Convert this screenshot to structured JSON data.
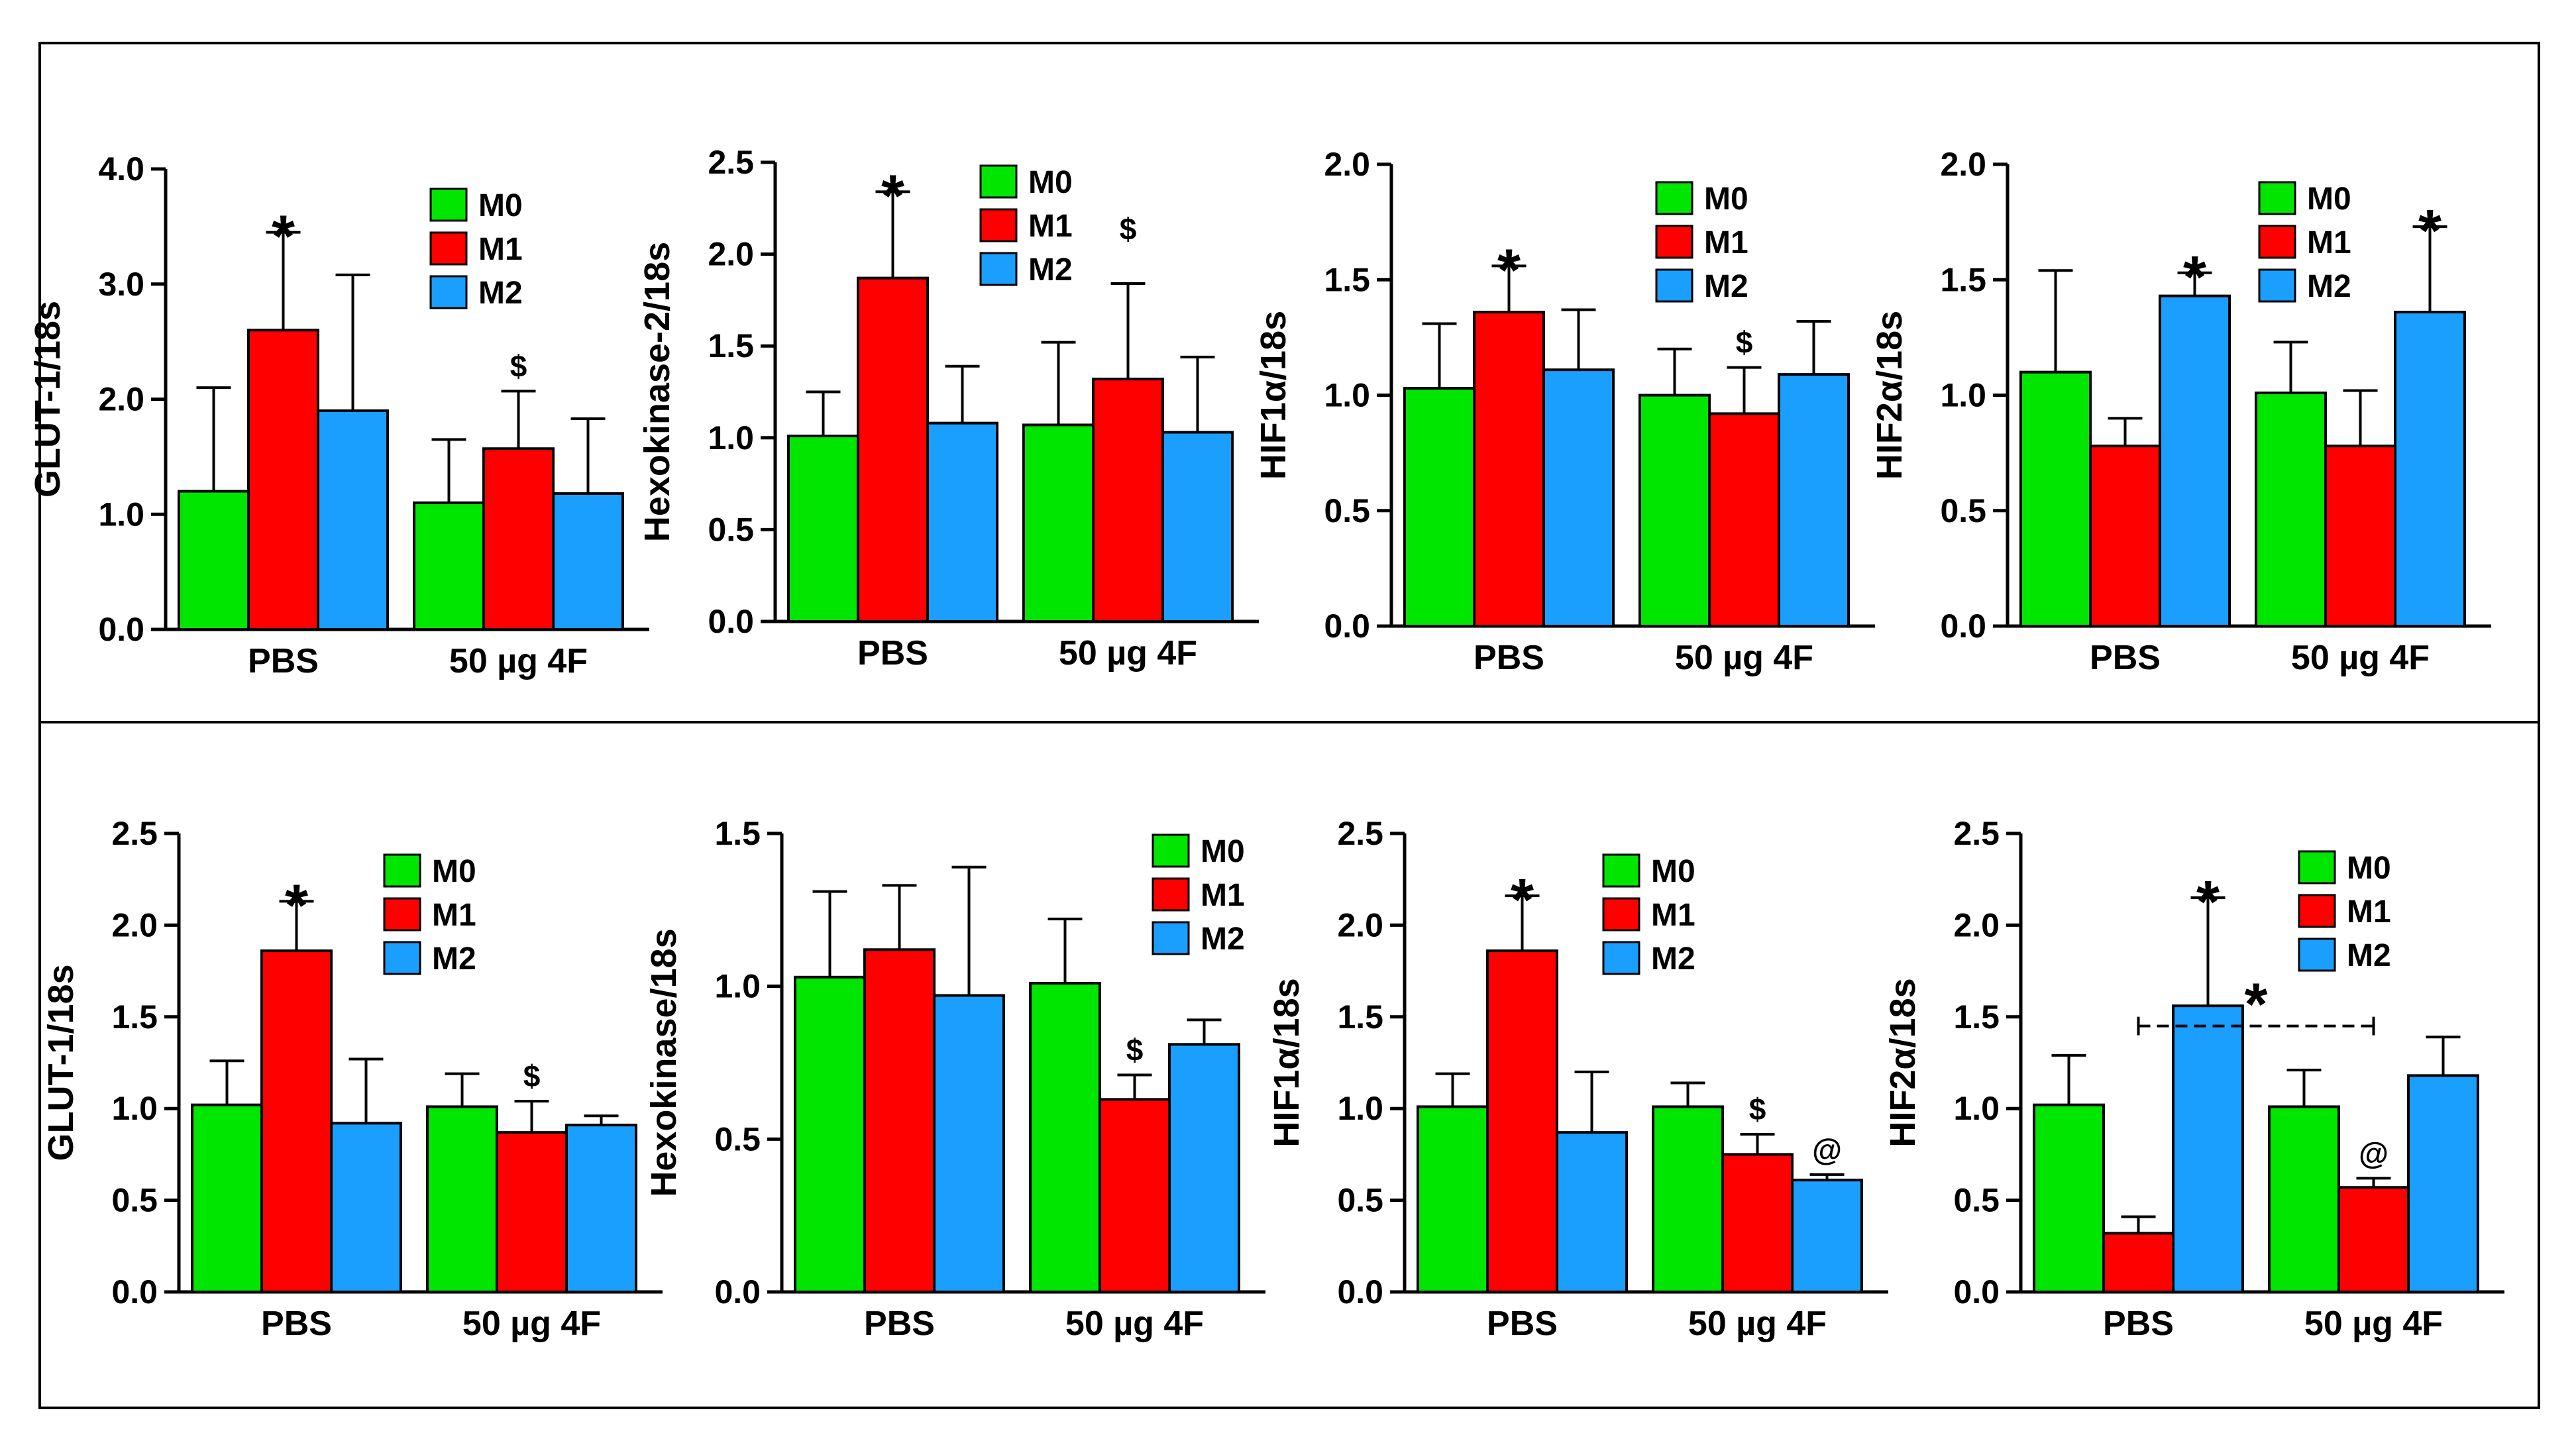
{
  "figure": {
    "background": "#ffffff",
    "border_color": "#000000"
  },
  "legend": {
    "labels": [
      "M0",
      "M1",
      "M2"
    ],
    "colors": [
      "#00e600",
      "#ff0000",
      "#1a9fff"
    ]
  },
  "chart_data": [
    {
      "type": "bar",
      "title": "",
      "ylabel": "GLUT-1/18s",
      "xlabel": "",
      "ylim": [
        0,
        4.0
      ],
      "yticks": [
        0.0,
        1.0,
        2.0,
        3.0,
        4.0
      ],
      "tick_decimals": 1,
      "categories": [
        "PBS",
        "50 µg 4F"
      ],
      "series": [
        {
          "name": "M0",
          "values": [
            1.2,
            1.1
          ],
          "errors": [
            0.9,
            0.55
          ]
        },
        {
          "name": "M1",
          "values": [
            2.6,
            1.57
          ],
          "errors": [
            0.85,
            0.5
          ]
        },
        {
          "name": "M2",
          "values": [
            1.9,
            1.18
          ],
          "errors": [
            1.18,
            0.65
          ]
        }
      ],
      "annotations": [
        {
          "text": "*",
          "kind": "star",
          "category": 0,
          "series": 1
        },
        {
          "text": "$",
          "kind": "sym",
          "category": 1,
          "series": 1
        }
      ]
    },
    {
      "type": "bar",
      "title": "",
      "ylabel": "Hexokinase-2/18s",
      "xlabel": "",
      "ylim": [
        0,
        2.5
      ],
      "yticks": [
        0.0,
        0.5,
        1.0,
        1.5,
        2.0,
        2.5
      ],
      "tick_decimals": 1,
      "categories": [
        "PBS",
        "50 µg 4F"
      ],
      "series": [
        {
          "name": "M0",
          "values": [
            1.01,
            1.07
          ],
          "errors": [
            0.24,
            0.45
          ]
        },
        {
          "name": "M1",
          "values": [
            1.87,
            1.32
          ],
          "errors": [
            0.47,
            0.52
          ]
        },
        {
          "name": "M2",
          "values": [
            1.08,
            1.03
          ],
          "errors": [
            0.31,
            0.41
          ]
        }
      ],
      "annotations": [
        {
          "text": "*",
          "kind": "star",
          "category": 0,
          "series": 1
        },
        {
          "text": "$",
          "kind": "sym",
          "category": 1,
          "series": 1,
          "offset_value": 0.68
        }
      ]
    },
    {
      "type": "bar",
      "title": "",
      "ylabel": "HIF1α/18s",
      "xlabel": "",
      "ylim": [
        0,
        2.0
      ],
      "yticks": [
        0.0,
        0.5,
        1.0,
        1.5,
        2.0
      ],
      "tick_decimals": 1,
      "categories": [
        "PBS",
        "50 µg 4F"
      ],
      "series": [
        {
          "name": "M0",
          "values": [
            1.03,
            1.0
          ],
          "errors": [
            0.28,
            0.2
          ]
        },
        {
          "name": "M1",
          "values": [
            1.36,
            0.92
          ],
          "errors": [
            0.2,
            0.2
          ]
        },
        {
          "name": "M2",
          "values": [
            1.11,
            1.09
          ],
          "errors": [
            0.26,
            0.23
          ]
        }
      ],
      "annotations": [
        {
          "text": "*",
          "kind": "star",
          "category": 0,
          "series": 1
        },
        {
          "text": "$",
          "kind": "sym",
          "category": 1,
          "series": 1
        }
      ]
    },
    {
      "type": "bar",
      "title": "",
      "ylabel": "HIF2α/18s",
      "xlabel": "",
      "ylim": [
        0,
        2.0
      ],
      "yticks": [
        0.0,
        0.5,
        1.0,
        1.5,
        2.0
      ],
      "tick_decimals": 1,
      "categories": [
        "PBS",
        "50 µg 4F"
      ],
      "series": [
        {
          "name": "M0",
          "values": [
            1.1,
            1.01
          ],
          "errors": [
            0.44,
            0.22
          ]
        },
        {
          "name": "M1",
          "values": [
            0.78,
            0.78
          ],
          "errors": [
            0.12,
            0.24
          ]
        },
        {
          "name": "M2",
          "values": [
            1.43,
            1.36
          ],
          "errors": [
            0.1,
            0.37
          ]
        }
      ],
      "annotations": [
        {
          "text": "*",
          "kind": "star",
          "category": 0,
          "series": 2
        },
        {
          "text": "*",
          "kind": "star",
          "category": 1,
          "series": 2
        }
      ]
    },
    {
      "type": "bar",
      "title": "",
      "ylabel": "GLUT-1/18s",
      "xlabel": "",
      "ylim": [
        0,
        2.5
      ],
      "yticks": [
        0.0,
        0.5,
        1.0,
        1.5,
        2.0,
        2.5
      ],
      "tick_decimals": 1,
      "categories": [
        "PBS",
        "50 µg 4F"
      ],
      "series": [
        {
          "name": "M0",
          "values": [
            1.02,
            1.01
          ],
          "errors": [
            0.24,
            0.18
          ]
        },
        {
          "name": "M1",
          "values": [
            1.86,
            0.87
          ],
          "errors": [
            0.27,
            0.17
          ]
        },
        {
          "name": "M2",
          "values": [
            0.92,
            0.91
          ],
          "errors": [
            0.35,
            0.05
          ]
        }
      ],
      "annotations": [
        {
          "text": "*",
          "kind": "star",
          "category": 0,
          "series": 1
        },
        {
          "text": "$",
          "kind": "sym",
          "category": 1,
          "series": 1
        }
      ]
    },
    {
      "type": "bar",
      "title": "",
      "ylabel": "Hexokinase/18s",
      "xlabel": "",
      "ylim": [
        0,
        1.5
      ],
      "yticks": [
        0.0,
        0.5,
        1.0,
        1.5
      ],
      "tick_decimals": 1,
      "categories": [
        "PBS",
        "50 µg 4F"
      ],
      "series": [
        {
          "name": "M0",
          "values": [
            1.03,
            1.01
          ],
          "errors": [
            0.28,
            0.21
          ]
        },
        {
          "name": "M1",
          "values": [
            1.12,
            0.63
          ],
          "errors": [
            0.21,
            0.08
          ]
        },
        {
          "name": "M2",
          "values": [
            0.97,
            0.81
          ],
          "errors": [
            0.42,
            0.08
          ]
        }
      ],
      "annotations": [
        {
          "text": "$",
          "kind": "sym",
          "category": 1,
          "series": 1
        }
      ]
    },
    {
      "type": "bar",
      "title": "",
      "ylabel": "HIF1α/18s",
      "xlabel": "",
      "ylim": [
        0,
        2.5
      ],
      "yticks": [
        0.0,
        0.5,
        1.0,
        1.5,
        2.0,
        2.5
      ],
      "tick_decimals": 1,
      "categories": [
        "PBS",
        "50 µg 4F"
      ],
      "series": [
        {
          "name": "M0",
          "values": [
            1.01,
            1.01
          ],
          "errors": [
            0.18,
            0.13
          ]
        },
        {
          "name": "M1",
          "values": [
            1.86,
            0.75
          ],
          "errors": [
            0.3,
            0.11
          ]
        },
        {
          "name": "M2",
          "values": [
            0.87,
            0.61
          ],
          "errors": [
            0.33,
            0.03
          ]
        }
      ],
      "annotations": [
        {
          "text": "*",
          "kind": "star",
          "category": 0,
          "series": 1
        },
        {
          "text": "$",
          "kind": "sym",
          "category": 1,
          "series": 1
        },
        {
          "text": "@",
          "kind": "sym",
          "category": 1,
          "series": 2
        }
      ]
    },
    {
      "type": "bar",
      "title": "",
      "ylabel": "HIF2α/18s",
      "xlabel": "",
      "ylim": [
        0,
        2.5
      ],
      "yticks": [
        0.0,
        0.5,
        1.0,
        1.5,
        2.0,
        2.5
      ],
      "tick_decimals": 1,
      "categories": [
        "PBS",
        "50 µg 4F"
      ],
      "series": [
        {
          "name": "M0",
          "values": [
            1.02,
            1.01
          ],
          "errors": [
            0.27,
            0.2
          ]
        },
        {
          "name": "M1",
          "values": [
            0.32,
            0.57
          ],
          "errors": [
            0.09,
            0.05
          ]
        },
        {
          "name": "M2",
          "values": [
            1.56,
            1.18
          ],
          "errors": [
            0.59,
            0.21
          ]
        }
      ],
      "annotations": [
        {
          "text": "*",
          "kind": "star",
          "category": 0,
          "series": 2
        },
        {
          "text": "@",
          "kind": "sym",
          "category": 1,
          "series": 1
        }
      ],
      "bracket": {
        "from_category": 0,
        "to_category": 1,
        "y_value": 1.45,
        "text": "*"
      }
    }
  ]
}
